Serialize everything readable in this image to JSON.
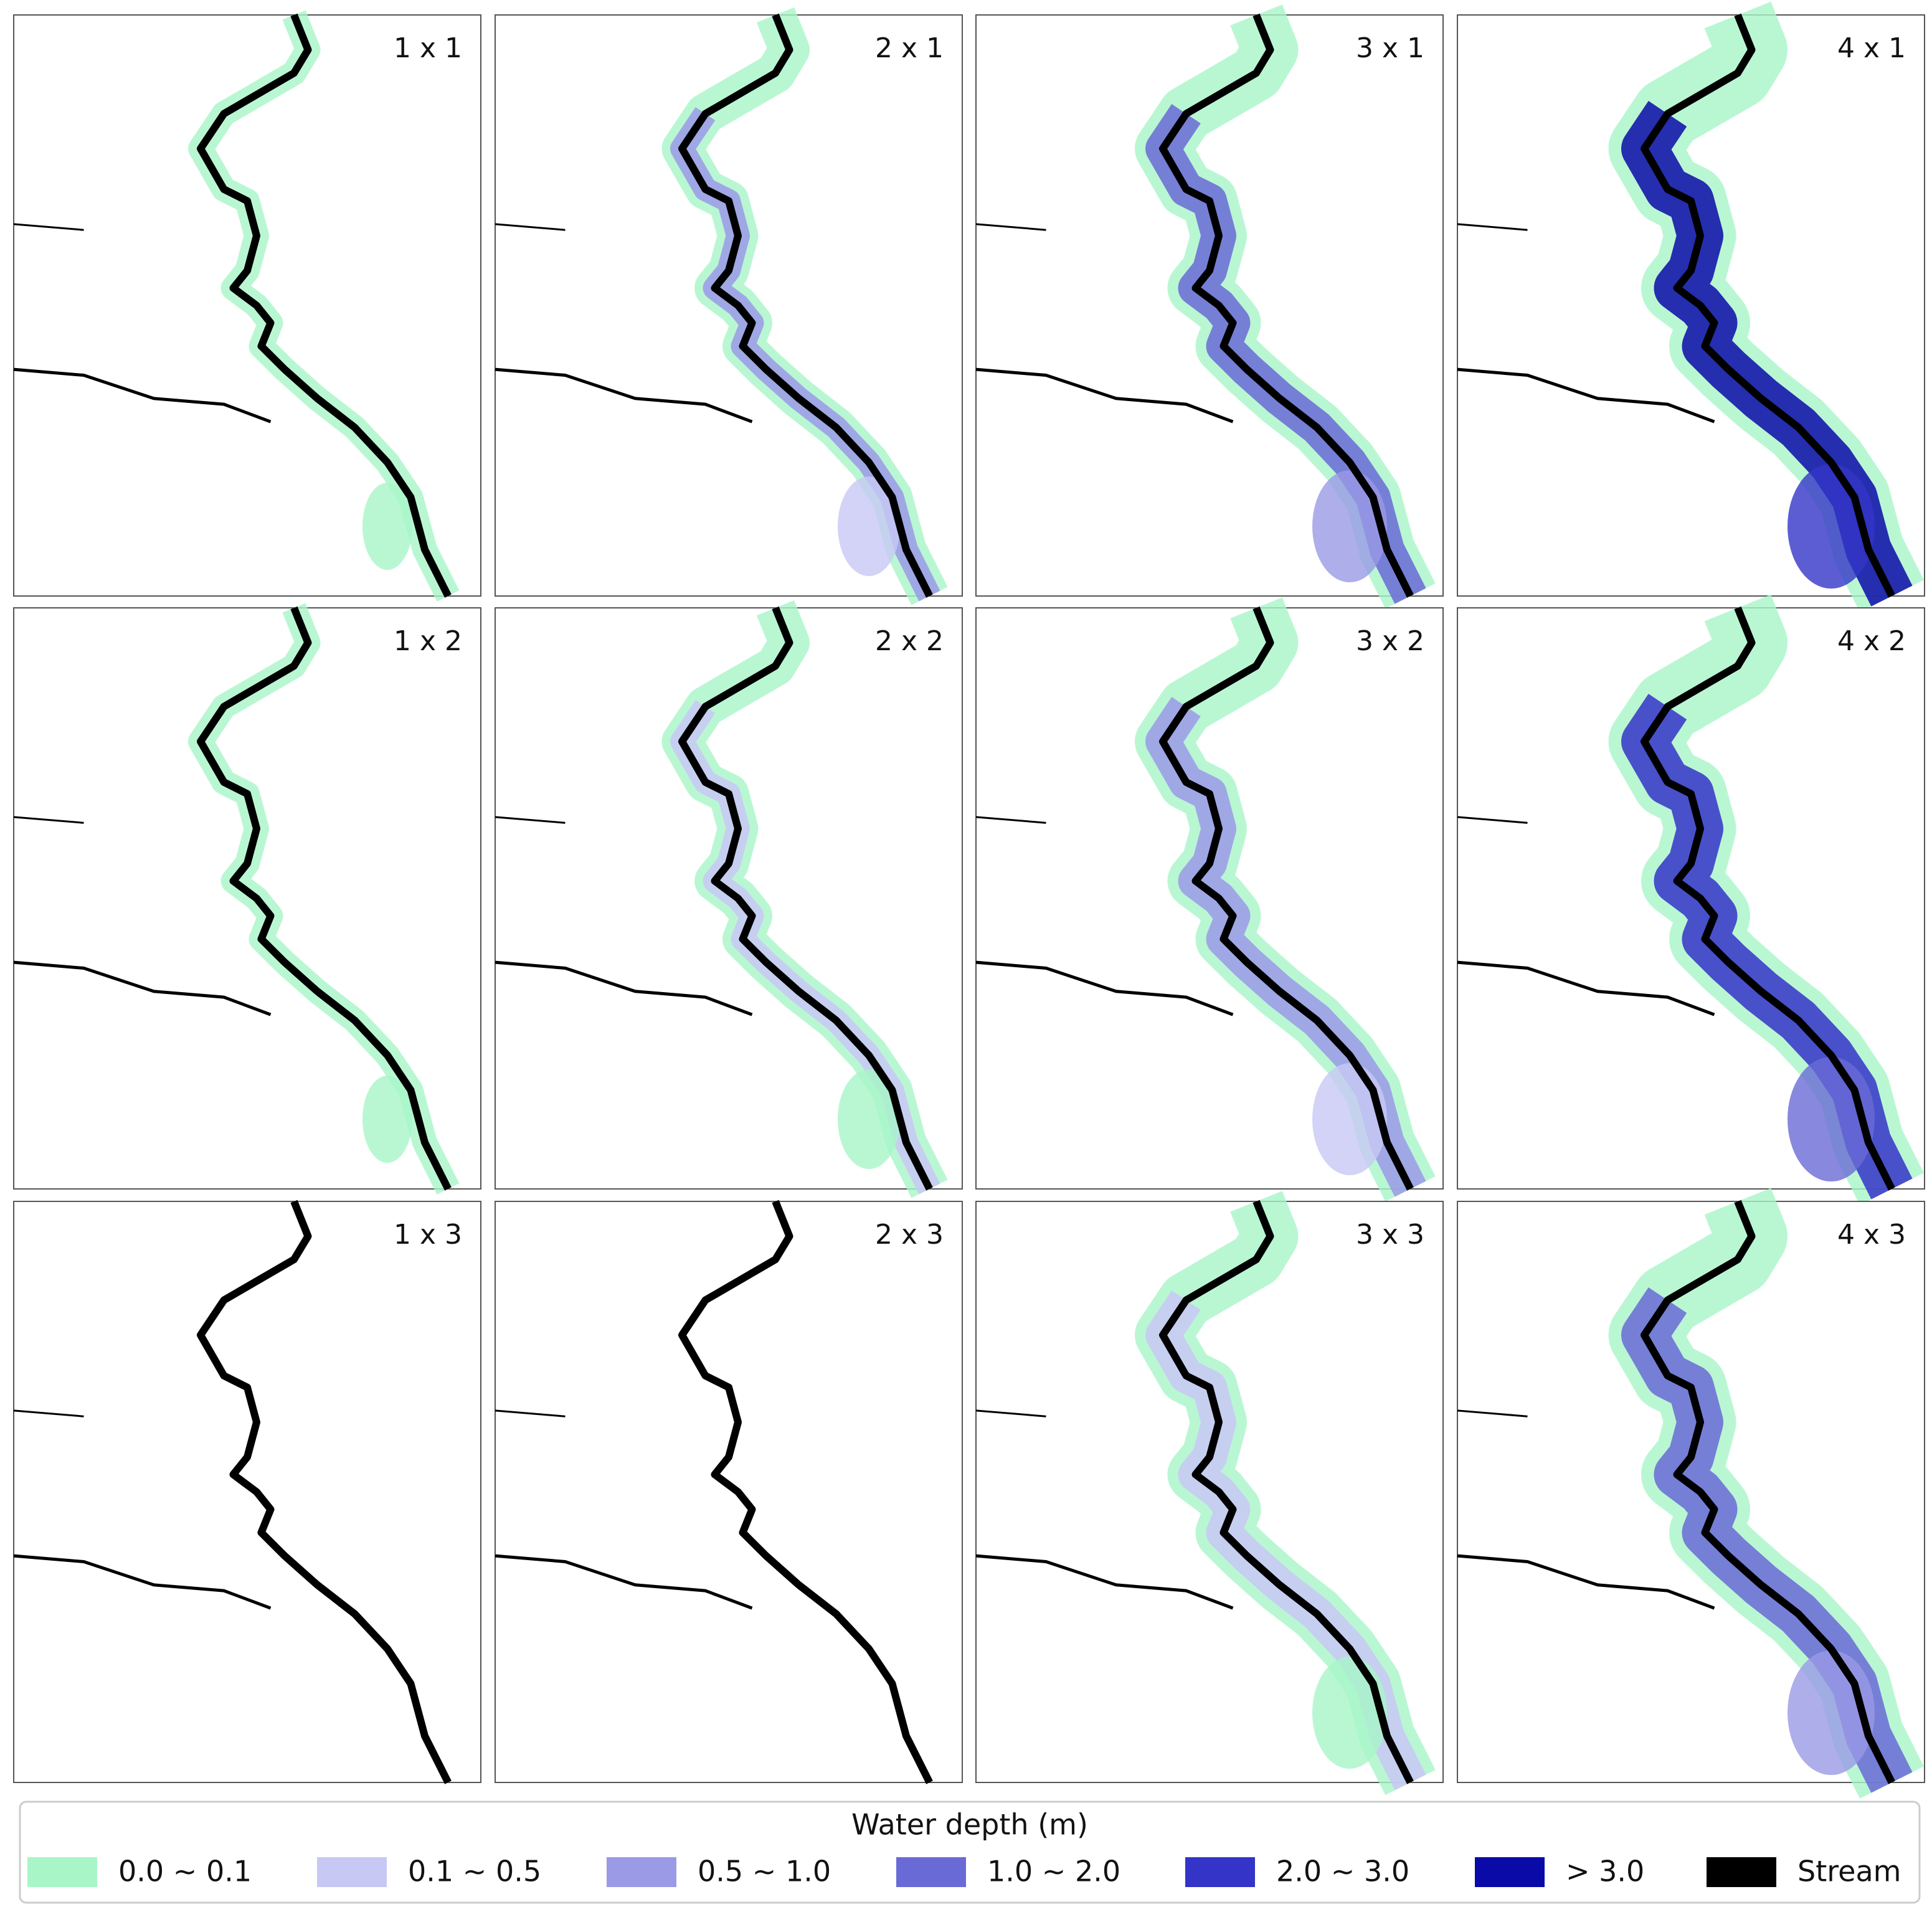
{
  "panels": [
    {
      "label": "1 x 1"
    },
    {
      "label": "2 x 1"
    },
    {
      "label": "3 x 1"
    },
    {
      "label": "4 x 1"
    },
    {
      "label": "1 x 2"
    },
    {
      "label": "2 x 2"
    },
    {
      "label": "3 x 2"
    },
    {
      "label": "4 x 2"
    },
    {
      "label": "1 x 3"
    },
    {
      "label": "2 x 3"
    },
    {
      "label": "3 x 3"
    },
    {
      "label": "4 x 3"
    }
  ],
  "legend": {
    "title": "Water depth (m)",
    "items": [
      {
        "label": "0.0 ~ 0.1",
        "color": "#a8f5c8"
      },
      {
        "label": "0.1 ~ 0.5",
        "color": "#c8c8f5"
      },
      {
        "label": "0.5 ~ 1.0",
        "color": "#9a9ae6"
      },
      {
        "label": "1.0 ~ 2.0",
        "color": "#6a6ad6"
      },
      {
        "label": "2.0 ~ 3.0",
        "color": "#3434c8"
      },
      {
        "label": "> 3.0",
        "color": "#0a0aa8"
      },
      {
        "label": "Stream",
        "color": "#000000"
      }
    ]
  }
}
